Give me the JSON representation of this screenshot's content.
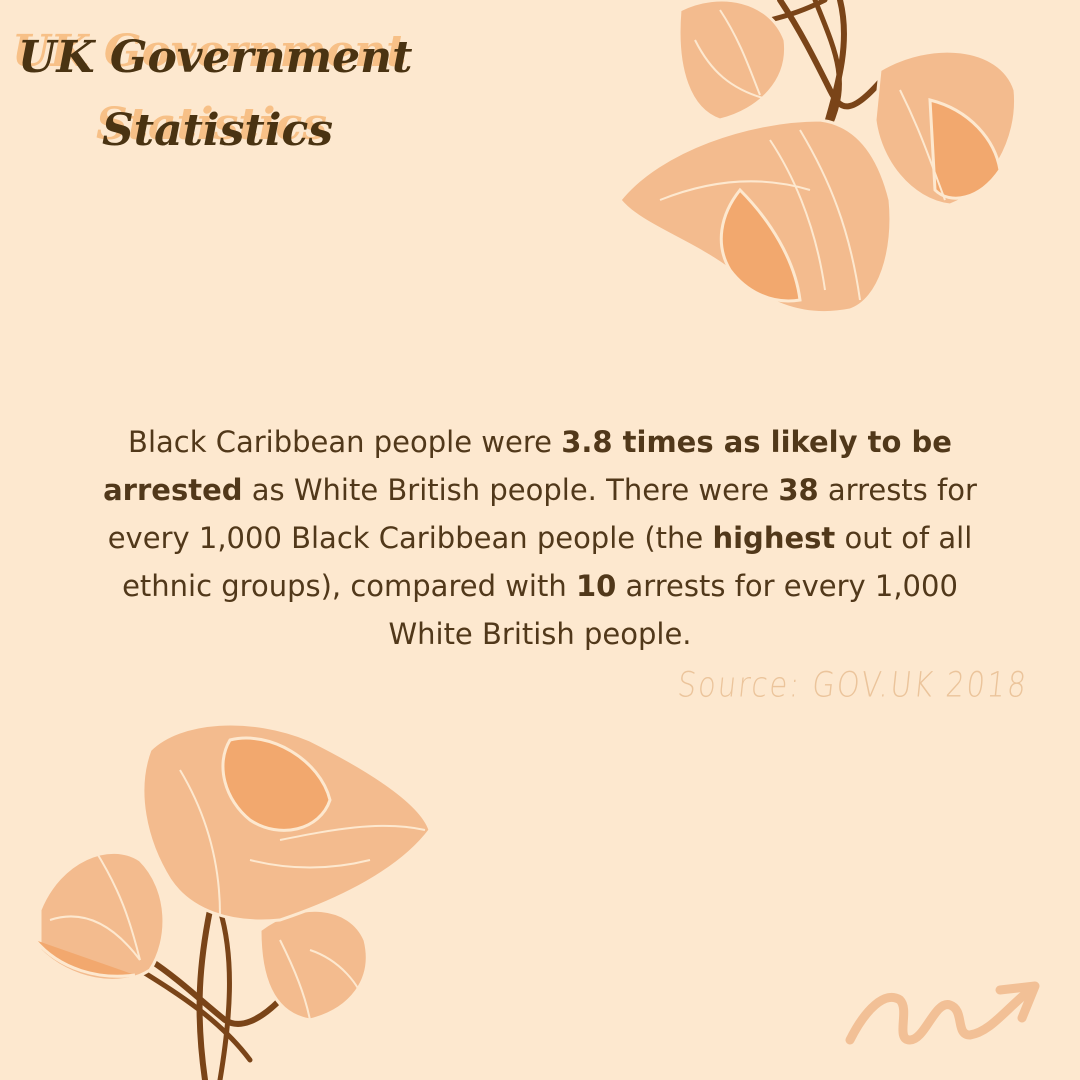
{
  "title": {
    "line1": "UK Government",
    "line2": "Statistics"
  },
  "body": {
    "s1": "Black Caribbean people were ",
    "b1": "3.8 times as likely to be arrested",
    "s2": " as White British people. There were ",
    "b2": "38",
    "s3": " arrests for every 1,000 Black Caribbean people (the ",
    "b3": "highest",
    "s4": " out of all ethnic groups), compared with ",
    "b4": "10",
    "s5": " arrests for every 1,000 White British people."
  },
  "source": "Source: GOV.UK 2018",
  "colors": {
    "background": "#fde8cf",
    "text": "#51381a",
    "title": "#4a3312",
    "title_shadow": "#f6ba7b",
    "petal": "#f3bb8e",
    "petal_dark": "#f2a86e",
    "stem": "#7a4418",
    "arrow": "#f2c096"
  },
  "decor": {
    "top_flower": "flower-illustration",
    "bottom_flower": "flower-illustration",
    "arrow": "squiggle-arrow-icon"
  }
}
